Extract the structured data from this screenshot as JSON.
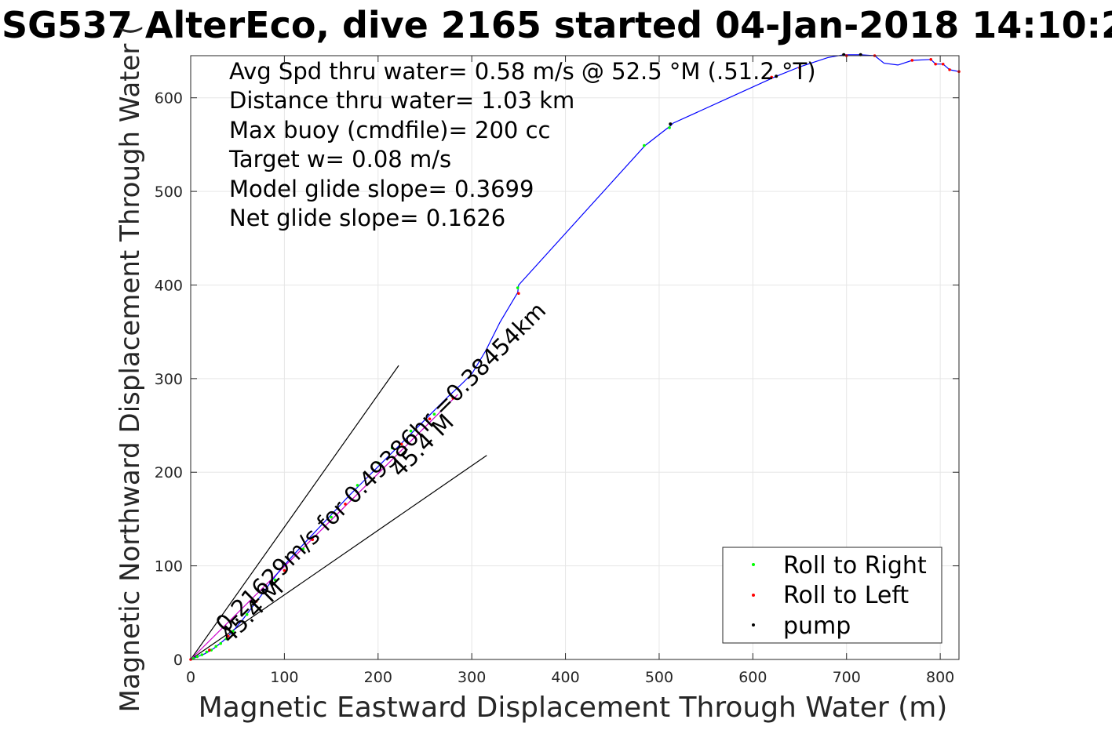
{
  "chart_data": {
    "type": "line",
    "title": "SG537 AlterEco, dive 2165 started 04-Jan-2018 14:10:2",
    "xlabel": "Magnetic Eastward Displacement Through Water (m)",
    "ylabel": "Magnetic Northward Displacement Through Water (",
    "xlim": [
      0,
      820
    ],
    "ylim": [
      0,
      645
    ],
    "xticks": [
      0,
      100,
      200,
      300,
      400,
      500,
      600,
      700,
      800
    ],
    "yticks": [
      0,
      100,
      200,
      300,
      400,
      500,
      600
    ],
    "grid": true,
    "stats": [
      "Avg Spd thru water=  0.58 m/s @  52.5 °M (.51.2 °T)",
      "Distance thru water=  1.03 km",
      "Max buoy (cmdfile)= 200 cc",
      "Target w= 0.08 m/s",
      "Model glide slope= 0.3699",
      "Net glide slope= 0.1626"
    ],
    "annotations": [
      "0.21629m/s for 0.49386hr =0.38454km",
      "45.4 M",
      "45.4 M"
    ],
    "legend_position": "bottom-right",
    "legend": [
      {
        "name": "Roll to Right",
        "color": "#00ff00"
      },
      {
        "name": "Roll to Left",
        "color": "#ff0000"
      },
      {
        "name": "pump",
        "color": "#000000"
      }
    ],
    "reference_lines": [
      {
        "x": [
          0,
          222
        ],
        "y": [
          0,
          314
        ]
      },
      {
        "x": [
          0,
          316
        ],
        "y": [
          0,
          218
        ]
      },
      {
        "x": [
          0,
          285
        ],
        "y": [
          0,
          283
        ]
      }
    ],
    "series": [
      {
        "color": "#0000ff",
        "x": [
          0,
          5,
          10,
          15,
          20,
          25,
          30,
          35,
          45,
          55,
          65,
          75,
          85,
          95,
          110,
          125,
          140,
          155,
          170,
          185,
          200,
          215,
          230,
          245,
          260,
          275,
          290,
          300,
          315,
          330,
          349,
          350,
          485,
          512,
          515,
          625,
          650,
          680,
          697,
          715,
          730,
          740,
          755,
          770,
          790,
          795,
          803,
          810,
          815,
          820
        ],
        "y": [
          0,
          2,
          4,
          6,
          9,
          12,
          16,
          20,
          30,
          42,
          55,
          68,
          82,
          95,
          112,
          128,
          144,
          160,
          176,
          191,
          206,
          221,
          236,
          251,
          266,
          281,
          295,
          305,
          330,
          360,
          392,
          400,
          549,
          570,
          573,
          623,
          633,
          643,
          646,
          646,
          645,
          637,
          635,
          640,
          641,
          636,
          636,
          630,
          629,
          628
        ]
      }
    ],
    "markers": {
      "roll_right_x": [
        3,
        7,
        12,
        17,
        22,
        27,
        32,
        38,
        45,
        60,
        90,
        120,
        150,
        178,
        200,
        215,
        235,
        260,
        349,
        484,
        511
      ],
      "roll_right_y": [
        1,
        3,
        5,
        8,
        10,
        14,
        17,
        22,
        30,
        48,
        85,
        118,
        152,
        186,
        210,
        226,
        244,
        262,
        397,
        549,
        568
      ],
      "roll_left_x": [
        0,
        20,
        40,
        70,
        100,
        130,
        165,
        190,
        225,
        255,
        280,
        350,
        620,
        650,
        700,
        730,
        770,
        790,
        795,
        803,
        810,
        820
      ],
      "roll_left_y": [
        0,
        10,
        25,
        62,
        95,
        128,
        166,
        196,
        230,
        257,
        279,
        391,
        622,
        632,
        645,
        645,
        640,
        641,
        636,
        636,
        630,
        628
      ],
      "pump_x": [
        512,
        625,
        697,
        715
      ],
      "pump_y": [
        572,
        623,
        646,
        646
      ]
    }
  }
}
